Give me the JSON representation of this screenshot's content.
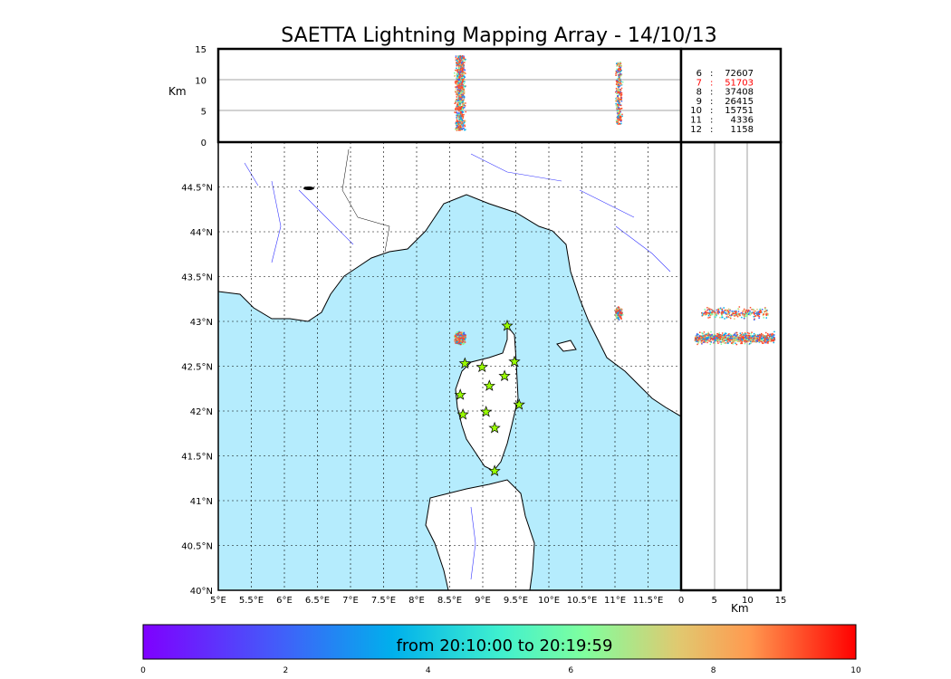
{
  "chart_data": {
    "type": "scatter",
    "title": "SAETTA Lightning Mapping Array - 14/10/13",
    "map": {
      "lon_range": [
        5,
        12
      ],
      "lat_range": [
        40,
        45
      ],
      "lon_ticks": [
        "5°E",
        "5.5°E",
        "6°E",
        "6.5°E",
        "7°E",
        "7.5°E",
        "8°E",
        "8.5°E",
        "9°E",
        "9.5°E",
        "10°E",
        "10.5°E",
        "11°E",
        "11.5°E"
      ],
      "lat_ticks": [
        "40°N",
        "40.5°N",
        "41°N",
        "41.5°N",
        "42°N",
        "42.5°N",
        "43°N",
        "43.5°N",
        "44°N",
        "44.5°N"
      ],
      "grid": true
    },
    "altitude_panel": {
      "ylabel": "Km",
      "y_range": [
        0,
        15
      ],
      "y_ticks": [
        "0",
        "5",
        "10",
        "15"
      ]
    },
    "side_panel": {
      "xlabel": "Km",
      "x_range": [
        0,
        15
      ],
      "x_ticks": [
        "0",
        "5",
        "10",
        "15"
      ]
    },
    "stations": [
      {
        "lon": 9.37,
        "lat": 42.95
      },
      {
        "lon": 8.73,
        "lat": 42.53
      },
      {
        "lon": 8.99,
        "lat": 42.49
      },
      {
        "lon": 9.48,
        "lat": 42.55
      },
      {
        "lon": 9.33,
        "lat": 42.39
      },
      {
        "lon": 9.1,
        "lat": 42.28
      },
      {
        "lon": 8.66,
        "lat": 42.18
      },
      {
        "lon": 9.55,
        "lat": 42.07
      },
      {
        "lon": 9.05,
        "lat": 41.99
      },
      {
        "lon": 8.7,
        "lat": 41.96
      },
      {
        "lon": 9.18,
        "lat": 41.81
      },
      {
        "lon": 9.18,
        "lat": 41.33
      }
    ],
    "clusters": [
      {
        "lon": 8.65,
        "lat": 42.82,
        "lon_spread": 0.1,
        "lat_spread": 0.08,
        "alt_range": [
          2,
          14
        ],
        "count": 900
      },
      {
        "lon": 11.05,
        "lat": 43.1,
        "lon_spread": 0.07,
        "lat_spread": 0.08,
        "alt_range": [
          3,
          13
        ],
        "count": 300
      }
    ],
    "station_counts": [
      {
        "station": "6",
        "count": "72607",
        "highlight": false
      },
      {
        "station": "7",
        "count": "51703",
        "highlight": true
      },
      {
        "station": "8",
        "count": "37408",
        "highlight": false
      },
      {
        "station": "9",
        "count": "26415",
        "highlight": false
      },
      {
        "station": "10",
        "count": "15751",
        "highlight": false
      },
      {
        "station": "11",
        "count": "4336",
        "highlight": false
      },
      {
        "station": "12",
        "count": "1158",
        "highlight": false
      }
    ],
    "colorbar": {
      "label": "from 20:10:00 to 20:19:59",
      "range": [
        0,
        10
      ],
      "ticks": [
        "0",
        "2",
        "4",
        "6",
        "8",
        "10"
      ]
    }
  },
  "colors": {
    "sea": "#b5ecfd",
    "river": "#3333ff",
    "highlight": "#ff0000",
    "star": "#99ff00"
  }
}
